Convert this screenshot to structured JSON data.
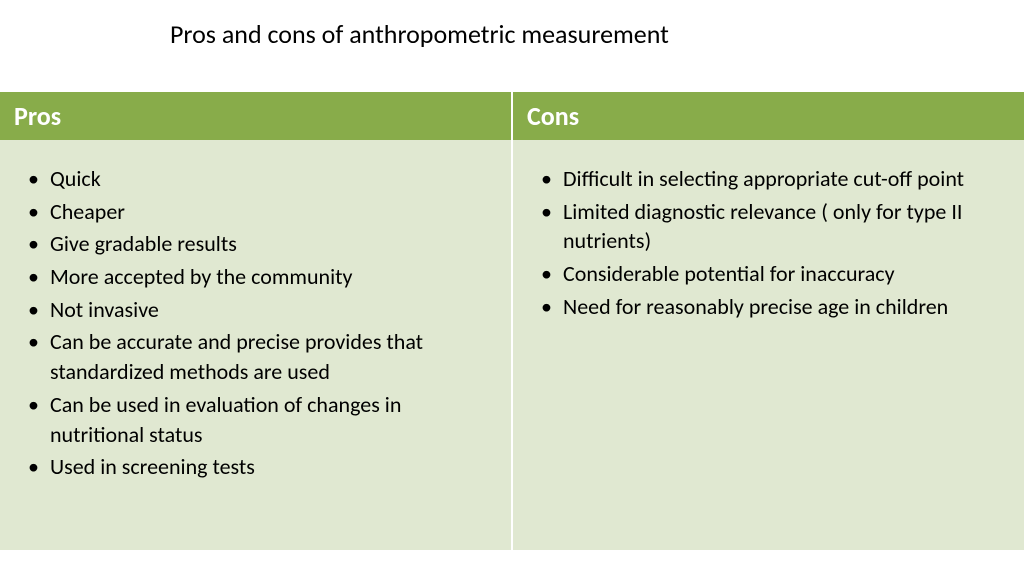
{
  "title": "Pros and cons of anthropometric measurement",
  "table": {
    "header_bg": "#88ac4a",
    "header_fg": "#ffffff",
    "body_bg": "#e0e8d1",
    "text_color": "#000000",
    "title_fontsize": 26,
    "header_fontsize": 26,
    "item_fontsize": 22,
    "columns": [
      {
        "header": "Pros",
        "items": [
          "Quick",
          "Cheaper",
          "Give gradable results",
          "More accepted by the community",
          "Not invasive",
          "Can be accurate and precise provides that standardized methods are used",
          "Can be used in evaluation of changes in  nutritional status",
          "Used in screening tests"
        ]
      },
      {
        "header": "Cons",
        "items": [
          "Difficult in selecting appropriate cut-off point",
          "Limited diagnostic relevance ( only for type II nutrients)",
          "Considerable potential for inaccuracy",
          "Need for reasonably precise age in children"
        ]
      }
    ]
  }
}
